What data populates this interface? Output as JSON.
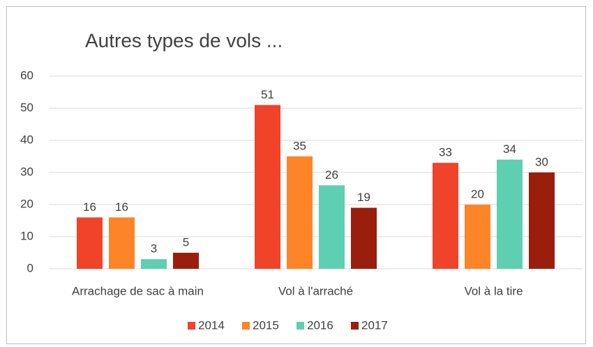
{
  "chart_data": {
    "type": "bar",
    "title": "Autres types de vols ...",
    "categories": [
      "Arrachage de sac à main",
      "Vol à l'arraché",
      "Vol à la tire"
    ],
    "series": [
      {
        "name": "2014",
        "color": "#f0432a",
        "values": [
          16,
          51,
          33
        ]
      },
      {
        "name": "2015",
        "color": "#fd8427",
        "values": [
          16,
          35,
          20
        ]
      },
      {
        "name": "2016",
        "color": "#5ecfb1",
        "values": [
          3,
          26,
          34
        ]
      },
      {
        "name": "2017",
        "color": "#9a1e0c",
        "values": [
          5,
          19,
          30
        ]
      }
    ],
    "ylim": [
      0,
      60
    ],
    "yticks": [
      0,
      10,
      20,
      30,
      40,
      50,
      60
    ],
    "grid": true,
    "legend": "bottom"
  }
}
